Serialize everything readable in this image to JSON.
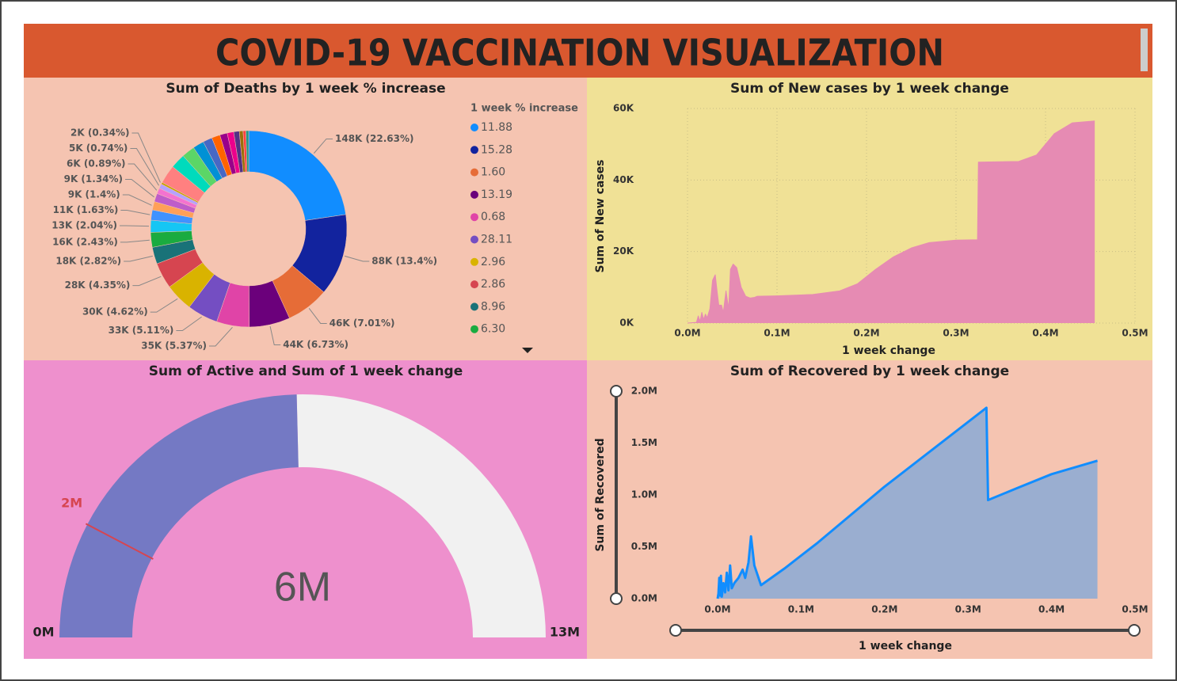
{
  "title": "COVID-19 VACCINATION VISUALIZATION",
  "chart_data": [
    {
      "type": "pie",
      "donut": true,
      "title": "Sum of Deaths by 1 week % increase",
      "legend_title": "1 week % increase",
      "categories": [
        "11.88",
        "15.28",
        "1.60",
        "13.19",
        "0.68",
        "28.11",
        "2.96",
        "2.86",
        "8.96",
        "6.30",
        null,
        null,
        null,
        null,
        null,
        null,
        null,
        null,
        null,
        null,
        null,
        null,
        null,
        null,
        null,
        null,
        null,
        null,
        null
      ],
      "values": [
        148000,
        88000,
        46000,
        44000,
        35000,
        33000,
        30000,
        28000,
        18000,
        16000,
        13000,
        11000,
        9000,
        9000,
        6000,
        5000,
        2000,
        20000,
        16000,
        14000,
        12000,
        10000,
        9000,
        8000,
        7000,
        6000,
        4000,
        3000,
        3000
      ],
      "value_labels": [
        "148K (22.63%)",
        "88K (13.4%)",
        "46K (7.01%)",
        "44K (6.73%)",
        "35K (5.37%)",
        "33K (5.11%)",
        "30K (4.62%)",
        "28K (4.35%)",
        "18K (2.82%)",
        "16K (2.43%)",
        "13K (2.04%)",
        "11K (1.63%)",
        "9K (1.4%)",
        "9K (1.34%)",
        "6K (0.89%)",
        "5K (0.74%)",
        "2K (0.34%)",
        null,
        null,
        null,
        null,
        null,
        null,
        null,
        null,
        null,
        null,
        null,
        null
      ],
      "colors": [
        "#118DFF",
        "#12239E",
        "#E66C37",
        "#6B007B",
        "#E044A7",
        "#744EC2",
        "#D9B300",
        "#D64550",
        "#197278",
        "#1AAB40",
        "#15C6F4",
        "#4092FF",
        "#FFA058",
        "#BE5DC9",
        "#F472D0",
        "#B5A1FF",
        "#C4A200",
        "#FF8080",
        "#00DBBC",
        "#5BD667",
        "#0091D5",
        "#4668C5",
        "#FF6300",
        "#99008A",
        "#EC008C",
        "#533285",
        "#99700A",
        "#FF4141",
        "#1F9A85"
      ]
    },
    {
      "type": "area",
      "title": "Sum of New cases by 1 week change",
      "x_label": "1 week change",
      "y_label": "Sum of New cases",
      "color": "#e68bb3",
      "grid": true,
      "x": [
        0,
        10000,
        12000,
        14000,
        16000,
        18000,
        20000,
        22000,
        25000,
        28000,
        31000,
        33000,
        35000,
        38000,
        40000,
        43000,
        46000,
        48000,
        51000,
        55000,
        60000,
        65000,
        70000,
        75000,
        78000,
        100000,
        140000,
        170000,
        190000,
        210000,
        230000,
        250000,
        270000,
        300000,
        324000,
        325000,
        370000,
        390000,
        410000,
        430000,
        455000
      ],
      "values": [
        0,
        200,
        2000,
        500,
        3000,
        1000,
        2500,
        1500,
        4000,
        12000,
        13500,
        9000,
        5000,
        5000,
        3000,
        9000,
        4000,
        15000,
        16500,
        15500,
        10000,
        7500,
        7000,
        7200,
        7500,
        7600,
        8000,
        9000,
        11000,
        15000,
        18500,
        21000,
        22500,
        23200,
        23300,
        45000,
        45200,
        47000,
        53000,
        56000,
        56500
      ],
      "xlim": [
        0,
        500000
      ],
      "xticks": [
        {
          "value": 0,
          "label": "0.0M"
        },
        {
          "value": 100000,
          "label": "0.1M"
        },
        {
          "value": 200000,
          "label": "0.2M"
        },
        {
          "value": 300000,
          "label": "0.3M"
        },
        {
          "value": 400000,
          "label": "0.4M"
        },
        {
          "value": 500000,
          "label": "0.5M"
        }
      ],
      "ylim": [
        0,
        60000
      ],
      "yticks": [
        {
          "value": 0,
          "label": "0K"
        },
        {
          "value": 20000,
          "label": "20K"
        },
        {
          "value": 40000,
          "label": "40K"
        },
        {
          "value": 60000,
          "label": "60K"
        }
      ]
    },
    {
      "type": "gauge",
      "title": "Sum of Active and Sum of 1 week change",
      "value": 6400000,
      "value_label": "6M",
      "color": "#7479c4",
      "track_color": "#f1f1f1",
      "target_color": "#d64550",
      "min": {
        "value": 0,
        "label": "0M"
      },
      "max": {
        "value": 13000000,
        "label": "13M"
      },
      "target": {
        "value": 2000000,
        "label": "2M"
      }
    },
    {
      "type": "area",
      "title": "Sum of Recovered by 1 week change",
      "x_label": "1 week change",
      "y_label": "Sum of Recovered",
      "color": "#9aaed0",
      "line_color": "#118dff",
      "grid": false,
      "x": [
        0,
        1000,
        2000,
        3000,
        4000,
        5000,
        7000,
        9000,
        11000,
        13000,
        15000,
        17000,
        20000,
        25000,
        30000,
        33000,
        37000,
        40000,
        44000,
        52000,
        80000,
        120000,
        200000,
        322000,
        324000,
        360000,
        400000,
        455000
      ],
      "values": [
        0,
        50000,
        200000,
        30000,
        220000,
        20000,
        150000,
        60000,
        250000,
        80000,
        320000,
        100000,
        150000,
        200000,
        280000,
        200000,
        350000,
        600000,
        320000,
        130000,
        290000,
        540000,
        1080000,
        1840000,
        950000,
        1070000,
        1200000,
        1330000
      ],
      "xlim": [
        0,
        500000
      ],
      "xticks": [
        {
          "value": 0,
          "label": "0.0M"
        },
        {
          "value": 100000,
          "label": "0.1M"
        },
        {
          "value": 200000,
          "label": "0.2M"
        },
        {
          "value": 300000,
          "label": "0.3M"
        },
        {
          "value": 400000,
          "label": "0.4M"
        },
        {
          "value": 500000,
          "label": "0.5M"
        }
      ],
      "ylim": [
        0,
        2000000
      ],
      "yticks": [
        {
          "value": 0,
          "label": "0.0M"
        },
        {
          "value": 500000,
          "label": "0.5M"
        },
        {
          "value": 1000000,
          "label": "1.0M"
        },
        {
          "value": 1500000,
          "label": "1.5M"
        },
        {
          "value": 2000000,
          "label": "2.0M"
        }
      ]
    }
  ]
}
